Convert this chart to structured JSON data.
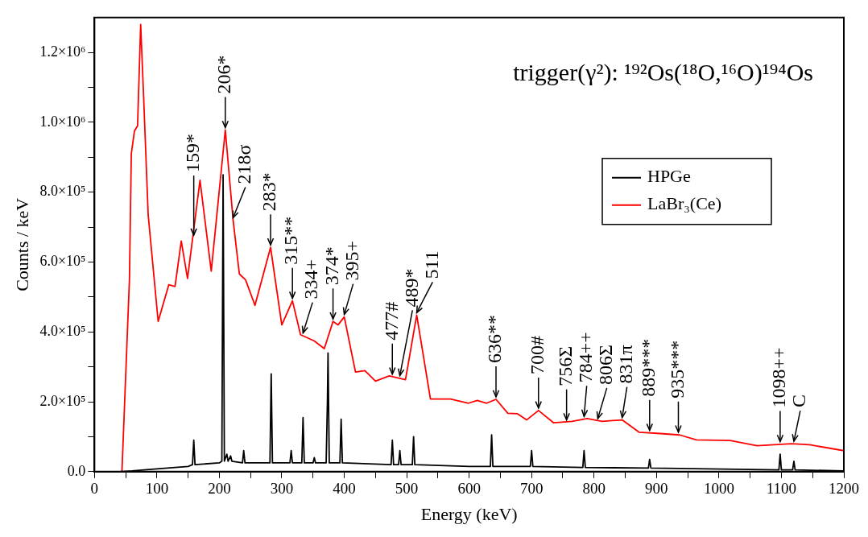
{
  "chart_data": {
    "type": "line",
    "title": "trigger(γ²): ¹⁹²Os(¹⁸O,¹⁶O)¹⁹⁴Os",
    "xlabel": "Energy (keV)",
    "ylabel": "Counts / keV",
    "xlim": [
      0,
      1200
    ],
    "xticks": [
      0,
      {
        "value": 50,
        "label": null
      },
      100,
      {
        "value": 150,
        "label": null
      },
      200,
      {
        "value": 250,
        "label": null
      },
      300,
      {
        "value": 350,
        "label": null
      },
      400,
      {
        "value": 450,
        "label": null
      },
      500,
      {
        "value": 550,
        "label": null
      },
      600,
      {
        "value": 650,
        "label": null
      },
      700,
      {
        "value": 750,
        "label": null
      },
      800,
      {
        "value": 850,
        "label": null
      },
      900,
      {
        "value": 950,
        "label": null
      },
      1000,
      {
        "value": 1050,
        "label": null
      },
      1100,
      {
        "value": 1150,
        "label": null
      },
      1200
    ],
    "ylim": [
      0,
      1300000
    ],
    "yticks": [
      {
        "value": 0,
        "label": "0.0"
      },
      {
        "value": 100000,
        "label": null
      },
      {
        "value": 200000,
        "label": "2.0×10⁵"
      },
      {
        "value": 300000,
        "label": null
      },
      {
        "value": 400000,
        "label": "4.0×10⁵"
      },
      {
        "value": 500000,
        "label": null
      },
      {
        "value": 600000,
        "label": "6.0×10⁵"
      },
      {
        "value": 700000,
        "label": null
      },
      {
        "value": 800000,
        "label": "8.0×10⁵"
      },
      {
        "value": 900000,
        "label": null
      },
      {
        "value": 1000000,
        "label": "1.0×10⁶"
      },
      {
        "value": 1100000,
        "label": null
      },
      {
        "value": 1200000,
        "label": "1.2×10⁶"
      }
    ],
    "grid": false,
    "legend": "top right",
    "marker": "none",
    "line_style": "solid",
    "series": [
      {
        "name": "HPGe",
        "color": "#000000",
        "x": [
          40,
          60,
          100,
          150,
          157,
          159,
          161,
          200,
          204,
          206,
          208,
          212,
          214,
          218,
          220,
          237,
          239,
          241,
          281,
          283,
          285,
          313,
          315,
          317,
          332,
          334,
          336,
          350,
          352,
          354,
          371,
          373,
          374,
          376,
          393,
          395,
          397,
          475,
          477,
          479,
          487,
          489,
          491,
          509,
          511,
          513,
          600,
          634,
          636,
          638,
          698,
          700,
          702,
          782,
          784,
          786,
          887,
          889,
          891,
          1096,
          1098,
          1100,
          1118,
          1120,
          1122,
          1200
        ],
        "values": [
          0,
          2000,
          8000,
          15000,
          20000,
          90000,
          20000,
          25000,
          30000,
          850000,
          30000,
          50000,
          30000,
          45000,
          30000,
          25000,
          60000,
          25000,
          25000,
          280000,
          25000,
          25000,
          60000,
          25000,
          25000,
          155000,
          25000,
          25000,
          40000,
          25000,
          25000,
          200000,
          340000,
          25000,
          25000,
          150000,
          25000,
          20000,
          90000,
          20000,
          20000,
          60000,
          20000,
          20000,
          100000,
          20000,
          15000,
          15000,
          105000,
          15000,
          15000,
          60000,
          15000,
          12000,
          60000,
          12000,
          10000,
          35000,
          10000,
          5000,
          50000,
          5000,
          5000,
          30000,
          5000,
          2000
        ]
      },
      {
        "name": "LaBr₃(Ce)",
        "color": "#ff0000",
        "x": [
          44,
          56,
          59,
          64,
          69,
          74,
          79,
          86,
          102,
          119,
          129,
          139,
          149,
          169,
          187,
          209.5,
          222,
          232,
          242,
          257,
          282,
          300,
          317,
          330,
          352,
          368,
          382,
          390,
          400,
          418,
          433,
          450,
          472,
          498,
          516,
          538,
          570,
          599,
          613,
          628,
          643,
          662,
          677,
          692,
          711,
          735,
          765,
          789,
          813,
          845,
          872,
          906,
          937,
          964,
          1018,
          1061,
          1116,
          1145,
          1200
        ],
        "values": [
          0,
          550000,
          910000,
          975000,
          990000,
          1280000,
          1060000,
          735000,
          430000,
          535000,
          530000,
          660000,
          553000,
          834000,
          574000,
          978000,
          720000,
          566000,
          549000,
          476000,
          642000,
          420000,
          489000,
          392000,
          374000,
          352000,
          430000,
          420000,
          443000,
          285000,
          289000,
          259000,
          274000,
          263000,
          448000,
          208000,
          208000,
          196000,
          204000,
          196000,
          207000,
          167000,
          166000,
          148000,
          175000,
          140000,
          144000,
          152000,
          144000,
          148000,
          113000,
          109000,
          105000,
          91000,
          89000,
          74000,
          80000,
          77000,
          60000
        ]
      }
    ],
    "annotations": [
      {
        "text": "159*",
        "x": 159,
        "y": 670000
      },
      {
        "text": "206*",
        "x": 209.5,
        "y": 978000
      },
      {
        "text": "218σ",
        "x": 222,
        "y": 720000
      },
      {
        "text": "283*",
        "x": 282,
        "y": 642000
      },
      {
        "text": "315**",
        "x": 317,
        "y": 489000
      },
      {
        "text": "334+",
        "x": 334,
        "y": 390000
      },
      {
        "text": "374*",
        "x": 382,
        "y": 430000
      },
      {
        "text": "395+",
        "x": 400,
        "y": 443000
      },
      {
        "text": "477#",
        "x": 477,
        "y": 272000
      },
      {
        "text": "489*",
        "x": 489,
        "y": 268000
      },
      {
        "text": "511",
        "x": 516,
        "y": 448000
      },
      {
        "text": "636**",
        "x": 643,
        "y": 207000
      },
      {
        "text": "700#",
        "x": 711,
        "y": 175000
      },
      {
        "text": "756Σ",
        "x": 756,
        "y": 141000
      },
      {
        "text": "784++",
        "x": 784,
        "y": 151000
      },
      {
        "text": "806Σ",
        "x": 806,
        "y": 145000
      },
      {
        "text": "831π",
        "x": 845,
        "y": 148000
      },
      {
        "text": "889***",
        "x": 889,
        "y": 111000
      },
      {
        "text": "935***",
        "x": 935,
        "y": 106000
      },
      {
        "text": "1098++",
        "x": 1098,
        "y": 79000
      },
      {
        "text": "C",
        "x": 1120,
        "y": 80000
      }
    ]
  }
}
